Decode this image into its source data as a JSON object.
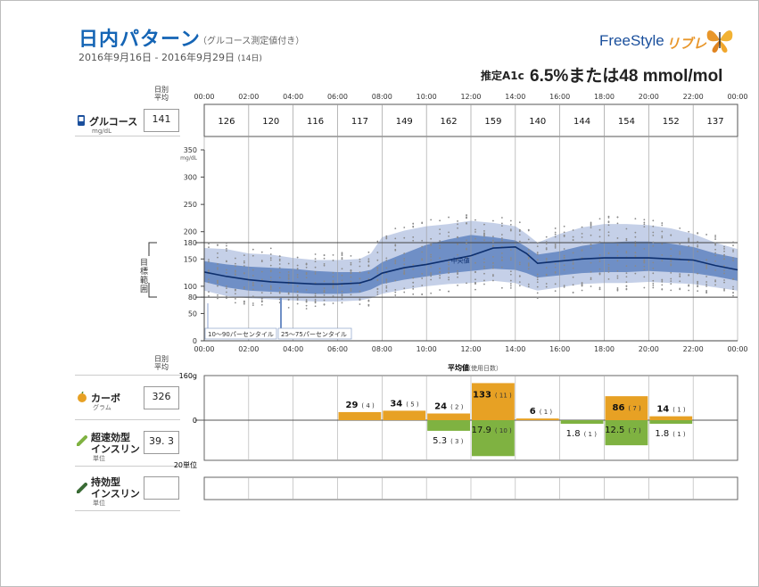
{
  "header": {
    "title": "日内パターン",
    "title_note": "（グルコース測定値付き）",
    "date_range": "2016年9月16日 - 2016年9月29日",
    "days": "(14日)",
    "brand": "FreeStyle",
    "brand_sub": "リブレ",
    "a1c_label": "推定A1c",
    "a1c_value": "6.5%または48 mmol/mol"
  },
  "left": {
    "daily_avg": "日別平均",
    "glucose_label": "グルコース",
    "glucose_unit": "mg/dL",
    "glucose_value": "141",
    "target_range": "目標範囲",
    "daily_avg2": "日別平均",
    "carb_label": "カーボ",
    "carb_unit": "グラム",
    "carb_value": "326",
    "rapid_label1": "超速効型",
    "rapid_label2": "インスリン",
    "rapid_unit": "単位",
    "rapid_value": "39. 3",
    "long_label1": "持効型",
    "long_label2": "インスリン",
    "long_unit": "単位",
    "long_value": ""
  },
  "colors": {
    "band_outer": "#c5d0e8",
    "band_inner": "#6f8fc6",
    "median": "#0d2f6e",
    "carb": "#e7a124",
    "insulin": "#7fb241",
    "dots": "#8a8a8a"
  },
  "chart_data": [
    {
      "type": "area",
      "title": "",
      "x_ticks": [
        "00:00",
        "02:00",
        "04:00",
        "06:00",
        "08:00",
        "10:00",
        "12:00",
        "14:00",
        "16:00",
        "18:00",
        "20:00",
        "22:00",
        "00:00"
      ],
      "y_ticks": [
        0,
        50,
        80,
        100,
        150,
        180,
        200,
        250,
        300,
        350
      ],
      "y_unit": "mg/dL",
      "ylim": [
        0,
        350
      ],
      "target_range": [
        80,
        180
      ],
      "hourly_avg": [
        126,
        120,
        116,
        117,
        149,
        162,
        159,
        140,
        144,
        154,
        152,
        137
      ],
      "median_label": "中央値",
      "legend": [
        "10〜90パーセンタイル",
        "25〜75パーセンタイル"
      ],
      "hours": [
        0,
        1,
        2,
        3,
        4,
        5,
        6,
        7,
        7.5,
        8,
        9,
        10,
        11,
        12,
        13,
        14,
        14.5,
        15,
        16,
        17,
        18,
        19,
        20,
        21,
        22,
        23,
        24
      ],
      "median": [
        126,
        118,
        112,
        108,
        106,
        104,
        104,
        106,
        112,
        124,
        134,
        140,
        148,
        156,
        170,
        172,
        160,
        142,
        146,
        150,
        152,
        152,
        152,
        150,
        148,
        138,
        130
      ],
      "p25": [
        108,
        98,
        92,
        90,
        88,
        86,
        86,
        88,
        94,
        104,
        112,
        118,
        124,
        128,
        132,
        130,
        124,
        116,
        120,
        124,
        126,
        126,
        128,
        126,
        124,
        118,
        110
      ],
      "p75": [
        146,
        140,
        136,
        134,
        132,
        128,
        126,
        126,
        130,
        144,
        160,
        176,
        186,
        194,
        190,
        184,
        172,
        158,
        164,
        174,
        180,
        182,
        182,
        178,
        172,
        160,
        152
      ],
      "p10": [
        92,
        82,
        78,
        76,
        74,
        72,
        72,
        74,
        78,
        86,
        94,
        100,
        104,
        106,
        110,
        106,
        98,
        92,
        98,
        104,
        106,
        106,
        108,
        106,
        104,
        98,
        92
      ],
      "p90": [
        170,
        168,
        160,
        158,
        152,
        148,
        148,
        150,
        160,
        190,
        202,
        210,
        214,
        220,
        216,
        210,
        196,
        180,
        196,
        208,
        214,
        214,
        212,
        206,
        196,
        180,
        168
      ]
    },
    {
      "type": "bar",
      "title": "平均値",
      "subtitle": "（使用日数）",
      "ylim": [
        -20,
        160
      ],
      "y_top_label": "160g",
      "y_bottom_label": "20単位",
      "y_zero_label": "0",
      "bins": [
        "00-02",
        "02-04",
        "04-06",
        "06-08",
        "08-10",
        "10-12",
        "12-14",
        "14-16",
        "16-18",
        "18-20",
        "20-22",
        "22-24"
      ],
      "series": [
        {
          "name": "カーボ",
          "values": [
            null,
            null,
            null,
            29,
            34,
            24,
            133,
            6,
            null,
            86,
            14,
            null
          ],
          "days": [
            "",
            "",
            "",
            "4",
            "5",
            "2",
            "11",
            "1",
            "",
            "7",
            "1",
            ""
          ]
        },
        {
          "name": "超速効型インスリン",
          "values": [
            null,
            null,
            null,
            null,
            null,
            5.3,
            17.9,
            null,
            1.8,
            12.5,
            1.8,
            null
          ],
          "days": [
            "",
            "",
            "",
            "",
            "",
            "3",
            "10",
            "",
            "1",
            "7",
            "1",
            ""
          ]
        }
      ]
    }
  ]
}
